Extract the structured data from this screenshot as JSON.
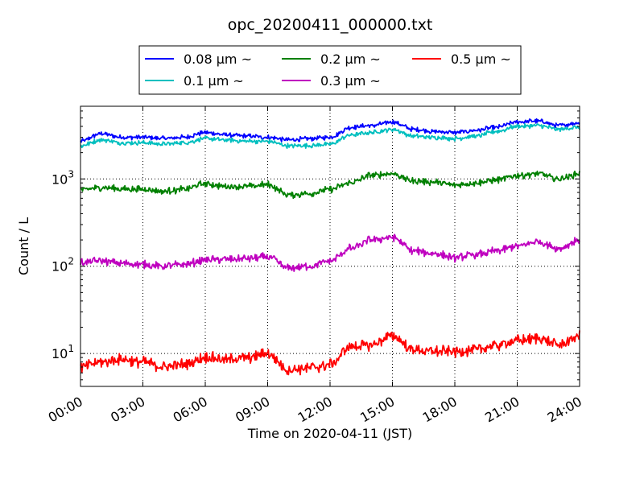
{
  "chart_data": {
    "type": "line",
    "title": "opc_20200411_000000.txt",
    "xlabel": "Time on 2020-04-11 (JST)",
    "ylabel": "Count / L",
    "yscale": "log",
    "xlim": [
      0,
      24
    ],
    "ylim": [
      4.2,
      6800
    ],
    "grid": true,
    "legend_placement": "top-center, above plot",
    "x_tick_labels": [
      "00:00",
      "03:00",
      "06:00",
      "09:00",
      "12:00",
      "15:00",
      "18:00",
      "21:00",
      "24:00"
    ],
    "x_ticks_hours": [
      0,
      3,
      6,
      9,
      12,
      15,
      18,
      21,
      24
    ],
    "y_ticks": [
      {
        "base": "10",
        "exp": "1",
        "value": 10
      },
      {
        "base": "10",
        "exp": "2",
        "value": 100
      },
      {
        "base": "10",
        "exp": "3",
        "value": 1000
      }
    ],
    "x_hours": [
      0,
      1,
      2,
      3,
      4,
      5,
      6,
      7,
      8,
      9,
      10,
      11,
      12,
      13,
      14,
      15,
      16,
      17,
      18,
      19,
      20,
      21,
      22,
      23,
      24
    ],
    "series": [
      {
        "name": "0.08 μm ~",
        "color": "#0000ff",
        "noise": 0.02,
        "values": [
          2700,
          3300,
          3000,
          3000,
          2900,
          3000,
          3400,
          3200,
          3100,
          3000,
          2800,
          2900,
          3000,
          3900,
          4100,
          4500,
          3700,
          3500,
          3400,
          3600,
          3900,
          4500,
          4600,
          4100,
          4400
        ]
      },
      {
        "name": "0.1 μm ~",
        "color": "#00bfbf",
        "noise": 0.02,
        "values": [
          2400,
          2800,
          2600,
          2600,
          2500,
          2600,
          2900,
          2800,
          2700,
          2700,
          2400,
          2400,
          2500,
          3200,
          3400,
          3700,
          3100,
          3000,
          2900,
          3100,
          3500,
          4000,
          4100,
          3700,
          3900
        ]
      },
      {
        "name": "0.2 μm ~",
        "color": "#008000",
        "noise": 0.03,
        "values": [
          750,
          800,
          770,
          760,
          720,
          760,
          880,
          820,
          820,
          860,
          660,
          680,
          760,
          900,
          1100,
          1150,
          950,
          920,
          850,
          900,
          970,
          1100,
          1150,
          1000,
          1150
        ]
      },
      {
        "name": "0.3 μm ~",
        "color": "#bf00bf",
        "noise": 0.035,
        "values": [
          110,
          115,
          108,
          105,
          100,
          105,
          118,
          120,
          122,
          128,
          95,
          100,
          115,
          160,
          200,
          215,
          150,
          140,
          125,
          135,
          150,
          170,
          190,
          160,
          200
        ]
      },
      {
        "name": "0.5 μm ~",
        "color": "#ff0000",
        "noise": 0.05,
        "values": [
          7,
          8,
          8.5,
          8,
          7,
          7.5,
          9,
          8.5,
          9,
          10,
          6.5,
          6.8,
          7.5,
          12,
          12.5,
          16,
          11,
          10.5,
          10.5,
          11,
          12.5,
          14,
          15,
          12.5,
          16
        ]
      }
    ]
  }
}
